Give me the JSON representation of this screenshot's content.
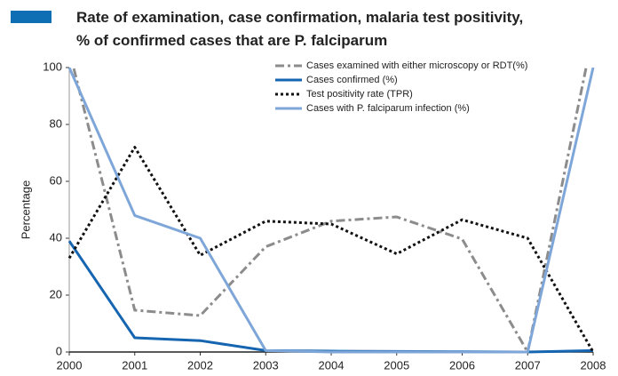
{
  "chart_data": {
    "type": "line",
    "title": "Rate of examination, case confirmation, malaria test positivity,",
    "subtitle": "% of confirmed cases that are P. falciparum",
    "y_label": "Percentage",
    "x": [
      2000,
      2001,
      2002,
      2003,
      2004,
      2005,
      2006,
      2007,
      2008
    ],
    "xlim": [
      2000,
      2008
    ],
    "xticks": [
      2000,
      2001,
      2002,
      2003,
      2004,
      2005,
      2006,
      2007,
      2008
    ],
    "ylim": [
      0,
      100
    ],
    "yticks": [
      0,
      20,
      40,
      60,
      80,
      100
    ],
    "legend": "top-right",
    "series": [
      {
        "name": "Cases examined with either microscopy or RDT(%)",
        "color": "#8c8c8c",
        "dash": "dashdot",
        "values": [
          106,
          14.7,
          12.8,
          37,
          46,
          47.5,
          39.7,
          0,
          112
        ]
      },
      {
        "name": "Cases confirmed (%)",
        "color": "#1565b0",
        "dash": "solid",
        "values": [
          39,
          5,
          4,
          0.5,
          0.3,
          0.2,
          0.1,
          0,
          0.5
        ]
      },
      {
        "name": "Test positivity rate (TPR)",
        "color": "#111111",
        "dash": "dotted",
        "values": [
          33,
          72,
          34,
          46,
          45,
          34.5,
          46.5,
          40,
          0
        ]
      },
      {
        "name": "Cases with P. falciparum infection (%)",
        "color": "#7ea6d8",
        "dash": "solid",
        "values": [
          100,
          48,
          40,
          0.5,
          0,
          0,
          0,
          0,
          100
        ]
      }
    ]
  }
}
